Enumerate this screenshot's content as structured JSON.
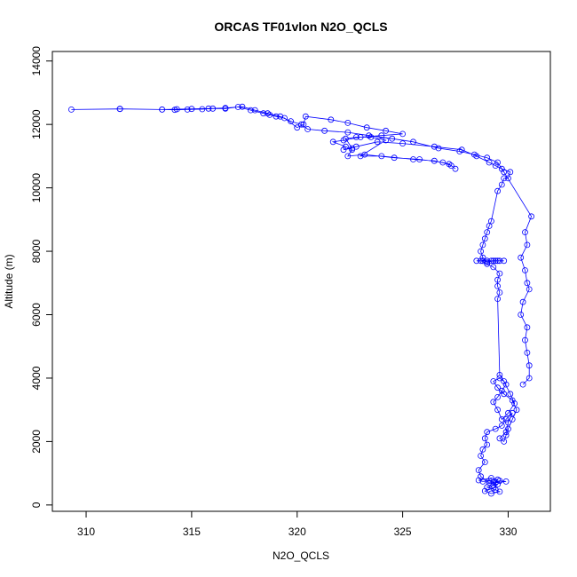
{
  "chart_data": {
    "type": "scatter",
    "title": "ORCAS TF01vlon N2O_QCLS",
    "xlabel": "N2O_QCLS",
    "ylabel": "Altitude (m)",
    "xlim": [
      308.4,
      332.0
    ],
    "ylim": [
      -200,
      14300
    ],
    "xticks": [
      310,
      315,
      320,
      325,
      330
    ],
    "yticks": [
      0,
      2000,
      4000,
      6000,
      8000,
      10000,
      12000,
      14000
    ],
    "grid": false,
    "legend": "none",
    "series": [
      {
        "marker": "open-circle",
        "line": true,
        "color": "#0000ff",
        "points": [
          [
            329.3,
            720
          ],
          [
            329.6,
            760
          ],
          [
            329.9,
            740
          ],
          [
            329.4,
            700
          ],
          [
            329.1,
            760
          ],
          [
            328.8,
            740
          ],
          [
            328.6,
            780
          ],
          [
            329.2,
            850
          ],
          [
            329.5,
            800
          ],
          [
            329.3,
            620
          ],
          [
            329.0,
            560
          ],
          [
            329.4,
            480
          ],
          [
            329.6,
            420
          ],
          [
            329.2,
            360
          ],
          [
            328.9,
            440
          ],
          [
            329.3,
            530
          ],
          [
            329.5,
            650
          ],
          [
            329.1,
            700
          ],
          [
            328.7,
            900
          ],
          [
            328.6,
            1100
          ],
          [
            328.9,
            1350
          ],
          [
            328.7,
            1550
          ],
          [
            328.8,
            1750
          ],
          [
            329.0,
            1900
          ],
          [
            328.9,
            2100
          ],
          [
            329.0,
            2300
          ],
          [
            329.4,
            2400
          ],
          [
            329.7,
            2500
          ],
          [
            329.9,
            2700
          ],
          [
            330.2,
            2900
          ],
          [
            330.0,
            2600
          ],
          [
            329.9,
            2300
          ],
          [
            329.6,
            2100
          ],
          [
            329.8,
            2000
          ],
          [
            329.9,
            2200
          ],
          [
            330.0,
            2400
          ],
          [
            330.2,
            2700
          ],
          [
            330.4,
            3000
          ],
          [
            330.2,
            3300
          ],
          [
            329.8,
            3500
          ],
          [
            329.5,
            3700
          ],
          [
            329.3,
            3900
          ],
          [
            329.6,
            4000
          ],
          [
            329.8,
            3900
          ],
          [
            330.1,
            3500
          ],
          [
            330.3,
            3200
          ],
          [
            330.0,
            2900
          ],
          [
            329.7,
            2700
          ],
          [
            329.5,
            3000
          ],
          [
            329.3,
            3250
          ],
          [
            329.5,
            3400
          ],
          [
            329.7,
            3600
          ],
          [
            329.9,
            3800
          ],
          [
            329.6,
            4100
          ],
          [
            329.5,
            6500
          ],
          [
            329.6,
            6700
          ],
          [
            329.5,
            6900
          ],
          [
            329.5,
            7100
          ],
          [
            329.6,
            7300
          ],
          [
            329.3,
            7500
          ],
          [
            329.0,
            7600
          ],
          [
            328.7,
            7700
          ],
          [
            328.5,
            7700
          ],
          [
            328.8,
            7700
          ],
          [
            329.0,
            7700
          ],
          [
            329.2,
            7700
          ],
          [
            329.4,
            7700
          ],
          [
            329.6,
            7700
          ],
          [
            329.8,
            7700
          ],
          [
            329.5,
            7700
          ],
          [
            329.3,
            7700
          ],
          [
            329.0,
            7650
          ],
          [
            328.8,
            7800
          ],
          [
            328.7,
            8000
          ],
          [
            328.8,
            8200
          ],
          [
            328.9,
            8400
          ],
          [
            329.0,
            8600
          ],
          [
            329.1,
            8800
          ],
          [
            329.2,
            8950
          ],
          [
            329.5,
            9900
          ],
          [
            329.7,
            10100
          ],
          [
            329.8,
            10300
          ],
          [
            330.0,
            10300
          ],
          [
            330.1,
            10500
          ],
          [
            329.7,
            10600
          ],
          [
            329.4,
            10700
          ],
          [
            329.1,
            10800
          ],
          [
            328.5,
            11000
          ],
          [
            327.8,
            11200
          ],
          [
            326.5,
            11300
          ],
          [
            325.0,
            11400
          ],
          [
            323.8,
            11450
          ],
          [
            322.8,
            11300
          ],
          [
            322.2,
            11200
          ],
          [
            322.6,
            11250
          ],
          [
            322.3,
            11550
          ],
          [
            322.8,
            11600
          ],
          [
            323.5,
            11600
          ],
          [
            324.2,
            11500
          ],
          [
            323.0,
            11000
          ],
          [
            324.0,
            11000
          ],
          [
            325.5,
            10900
          ],
          [
            326.5,
            10850
          ],
          [
            327.2,
            10750
          ],
          [
            327.5,
            10600
          ],
          [
            327.3,
            10700
          ],
          [
            326.9,
            10800
          ],
          [
            325.8,
            10900
          ],
          [
            324.6,
            10950
          ],
          [
            323.2,
            11050
          ],
          [
            322.4,
            11000
          ],
          [
            322.6,
            11200
          ],
          [
            322.3,
            11300
          ],
          [
            321.7,
            11450
          ],
          [
            322.2,
            11500
          ],
          [
            323.0,
            11600
          ],
          [
            324.0,
            11650
          ],
          [
            325.0,
            11700
          ],
          [
            324.2,
            11800
          ],
          [
            323.3,
            11900
          ],
          [
            322.4,
            12050
          ],
          [
            321.6,
            12150
          ],
          [
            320.4,
            12250
          ],
          [
            320.3,
            12000
          ],
          [
            320.0,
            11900
          ],
          [
            319.4,
            12200
          ],
          [
            319.0,
            12250
          ],
          [
            318.7,
            12300
          ],
          [
            318.4,
            12350
          ],
          [
            317.8,
            12450
          ],
          [
            317.2,
            12550
          ],
          [
            316.6,
            12500
          ],
          [
            316.0,
            12500
          ],
          [
            315.5,
            12480
          ],
          [
            314.8,
            12470
          ],
          [
            314.2,
            12460
          ],
          [
            313.6,
            12470
          ],
          [
            311.6,
            12490
          ],
          [
            309.3,
            12470
          ],
          [
            311.6,
            12490
          ],
          [
            313.6,
            12470
          ],
          [
            314.3,
            12480
          ],
          [
            315.0,
            12490
          ],
          [
            315.8,
            12500
          ],
          [
            316.6,
            12520
          ],
          [
            317.4,
            12560
          ],
          [
            318.0,
            12450
          ],
          [
            318.6,
            12350
          ],
          [
            319.2,
            12250
          ],
          [
            319.7,
            12100
          ],
          [
            320.2,
            12000
          ],
          [
            320.5,
            11850
          ],
          [
            321.3,
            11800
          ],
          [
            322.4,
            11750
          ],
          [
            323.4,
            11650
          ],
          [
            324.5,
            11550
          ],
          [
            325.5,
            11450
          ],
          [
            326.7,
            11250
          ],
          [
            327.7,
            11150
          ],
          [
            328.4,
            11050
          ],
          [
            329.0,
            10950
          ],
          [
            329.5,
            10800
          ],
          [
            329.8,
            10500
          ],
          [
            331.1,
            9100
          ],
          [
            330.8,
            8600
          ],
          [
            330.9,
            8200
          ],
          [
            330.6,
            7800
          ],
          [
            330.8,
            7400
          ],
          [
            330.9,
            7000
          ],
          [
            331.0,
            6800
          ],
          [
            330.7,
            6400
          ],
          [
            330.6,
            6000
          ],
          [
            330.9,
            5600
          ],
          [
            330.8,
            5200
          ],
          [
            330.9,
            4800
          ],
          [
            331.0,
            4400
          ],
          [
            331.0,
            4000
          ],
          [
            330.7,
            3800
          ]
        ]
      }
    ]
  }
}
